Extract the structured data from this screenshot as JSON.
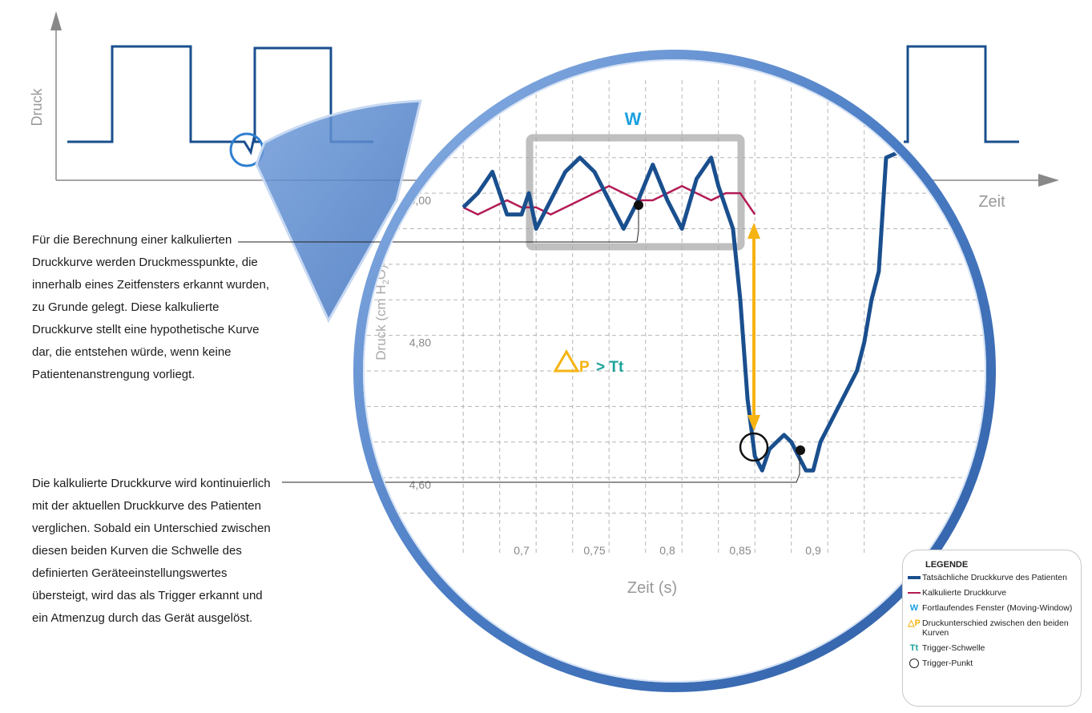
{
  "top_chart": {
    "y_label": "Druck",
    "x_label": "Zeit"
  },
  "zoom": {
    "window_label": "W",
    "y_axis_label": "Druck (cm H",
    "y_axis_sub": "2",
    "y_axis_suffix": "O)",
    "x_axis_label": "Zeit (s)",
    "delta_p_symbol": "P",
    "gt_threshold": "> Tt",
    "y_ticks": [
      "5,00",
      "4,80",
      "4,60"
    ],
    "x_ticks": [
      "0,7",
      "0,75",
      "0,8",
      "0,85",
      "0,9"
    ]
  },
  "text": {
    "para1": "Für die Berechnung einer kalkulierten Druckkurve werden Druckmesspunkte, die innerhalb eines Zeitfensters erkannt wurden, zu Grunde gelegt. Diese kalkulierte Druckkurve stellt eine hypothetische Kurve dar, die entstehen würde, wenn keine Patientenanstrengung vorliegt.",
    "para2": "Die kalkulierte Druckkurve wird kontinuierlich mit der aktuellen Druckkurve des Patienten verglichen. Sobald ein Unterschied zwischen diesen beiden Kurven die Schwelle des definierten Geräteeinstellungswertes übersteigt, wird das als Trigger erkannt und ein Atmenzug durch das Gerät ausgelöst."
  },
  "legend": {
    "title": "LEGENDE",
    "items": [
      {
        "symbol": "",
        "label": "Tatsächliche Druckkurve des Patienten"
      },
      {
        "symbol": "",
        "label": "Kalkulierte Druckkurve"
      },
      {
        "symbol": "W",
        "label": "Fortlaufendes Fenster (Moving-Window)"
      },
      {
        "symbol": "△P",
        "label": "Druckunterschied zwischen den beiden Kurven"
      },
      {
        "symbol": "Tt",
        "label": "Trigger-Schwelle"
      },
      {
        "symbol": "",
        "label": "Trigger-Punkt"
      }
    ]
  },
  "colors": {
    "actual_curve": "#1a4f8e",
    "calculated_curve": "#b31b55",
    "window": "#1aa0e0",
    "delta_p": "#f6b312",
    "threshold": "#1aa39a",
    "lens": "#5b8bd0"
  },
  "chart_data": {
    "type": "line",
    "x_unit": "s",
    "y_unit": "cm H2O",
    "xlim": [
      0.66,
      0.95
    ],
    "ylim": [
      4.55,
      5.06
    ],
    "series": [
      {
        "name": "Tatsächliche Druckkurve des Patienten",
        "x": [
          0.66,
          0.67,
          0.68,
          0.69,
          0.7,
          0.705,
          0.71,
          0.72,
          0.73,
          0.74,
          0.75,
          0.76,
          0.77,
          0.78,
          0.79,
          0.8,
          0.81,
          0.82,
          0.83,
          0.835,
          0.84,
          0.845,
          0.85,
          0.855,
          0.86,
          0.865,
          0.87,
          0.875,
          0.88,
          0.885,
          0.89,
          0.895,
          0.9,
          0.905,
          0.91,
          0.92,
          0.93,
          0.935,
          0.94,
          0.945,
          0.95
        ],
        "y": [
          4.99,
          5.01,
          5.04,
          4.98,
          4.98,
          5.01,
          4.96,
          5.0,
          5.04,
          5.06,
          5.04,
          5.0,
          4.96,
          5.0,
          5.05,
          5.0,
          4.96,
          5.03,
          5.06,
          5.02,
          4.99,
          4.96,
          4.86,
          4.72,
          4.64,
          4.62,
          4.65,
          4.66,
          4.67,
          4.66,
          4.64,
          4.62,
          4.62,
          4.66,
          4.68,
          4.72,
          4.76,
          4.8,
          4.86,
          4.9,
          5.06
        ]
      },
      {
        "name": "Kalkulierte Druckkurve",
        "x": [
          0.66,
          0.67,
          0.68,
          0.69,
          0.7,
          0.71,
          0.72,
          0.73,
          0.74,
          0.75,
          0.76,
          0.77,
          0.78,
          0.79,
          0.8,
          0.81,
          0.82,
          0.83,
          0.84,
          0.85,
          0.86
        ],
        "y": [
          4.99,
          4.98,
          4.99,
          5.0,
          4.99,
          4.99,
          4.98,
          4.99,
          5.0,
          5.01,
          5.02,
          5.01,
          5.0,
          5.0,
          5.01,
          5.02,
          5.01,
          5.0,
          5.01,
          5.01,
          4.98
        ]
      }
    ]
  }
}
